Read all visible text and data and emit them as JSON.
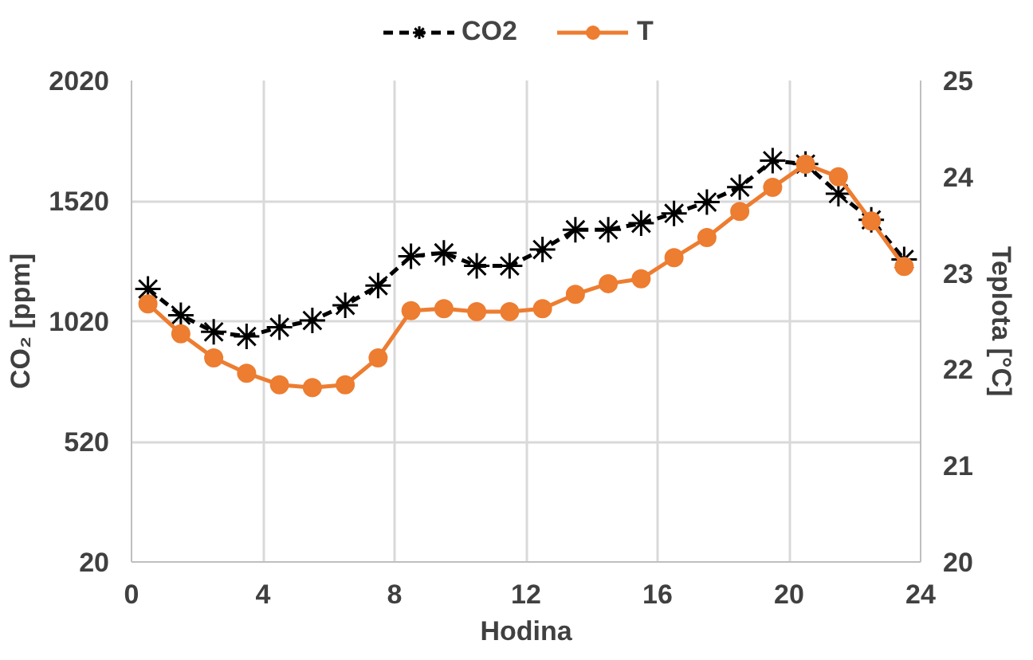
{
  "chart_data": {
    "type": "line",
    "xlabel": "Hodina",
    "ylabel": "CO₂ [ppm]",
    "y2label": "Teplota [°C]",
    "x": [
      0.5,
      1.5,
      2.5,
      3.5,
      4.5,
      5.5,
      6.5,
      7.5,
      8.5,
      9.5,
      10.5,
      11.5,
      12.5,
      13.5,
      14.5,
      15.5,
      16.5,
      17.5,
      18.5,
      19.5,
      20.5,
      21.5,
      22.5,
      23.5
    ],
    "xlim": [
      0,
      24
    ],
    "xticks": [
      0,
      4,
      8,
      12,
      16,
      20,
      24
    ],
    "ylim": [
      20,
      2020
    ],
    "yticks": [
      20,
      520,
      1020,
      1520,
      2020
    ],
    "y2lim": [
      20,
      25
    ],
    "y2ticks": [
      20,
      21,
      22,
      23,
      24,
      25
    ],
    "grid": true,
    "legend": "top",
    "series": [
      {
        "name": "CO2",
        "color": "#000000",
        "marker": "cross",
        "line_style": "dashed",
        "values": [
          1154,
          1045,
          976,
          957,
          995,
          1023,
          1086,
          1168,
          1290,
          1304,
          1250,
          1250,
          1318,
          1400,
          1400,
          1427,
          1468,
          1515,
          1577,
          1687,
          1673,
          1550,
          1441,
          1277
        ]
      },
      {
        "name": "T",
        "color": "#ed7d31",
        "marker": "circle",
        "line_style": "solid",
        "axis": "y2",
        "values": [
          22.68,
          22.37,
          22.12,
          21.96,
          21.84,
          21.81,
          21.84,
          22.12,
          22.61,
          22.63,
          22.6,
          22.6,
          22.63,
          22.78,
          22.89,
          22.94,
          23.16,
          23.37,
          23.64,
          23.89,
          24.13,
          24.0,
          23.54,
          23.07
        ]
      }
    ]
  }
}
